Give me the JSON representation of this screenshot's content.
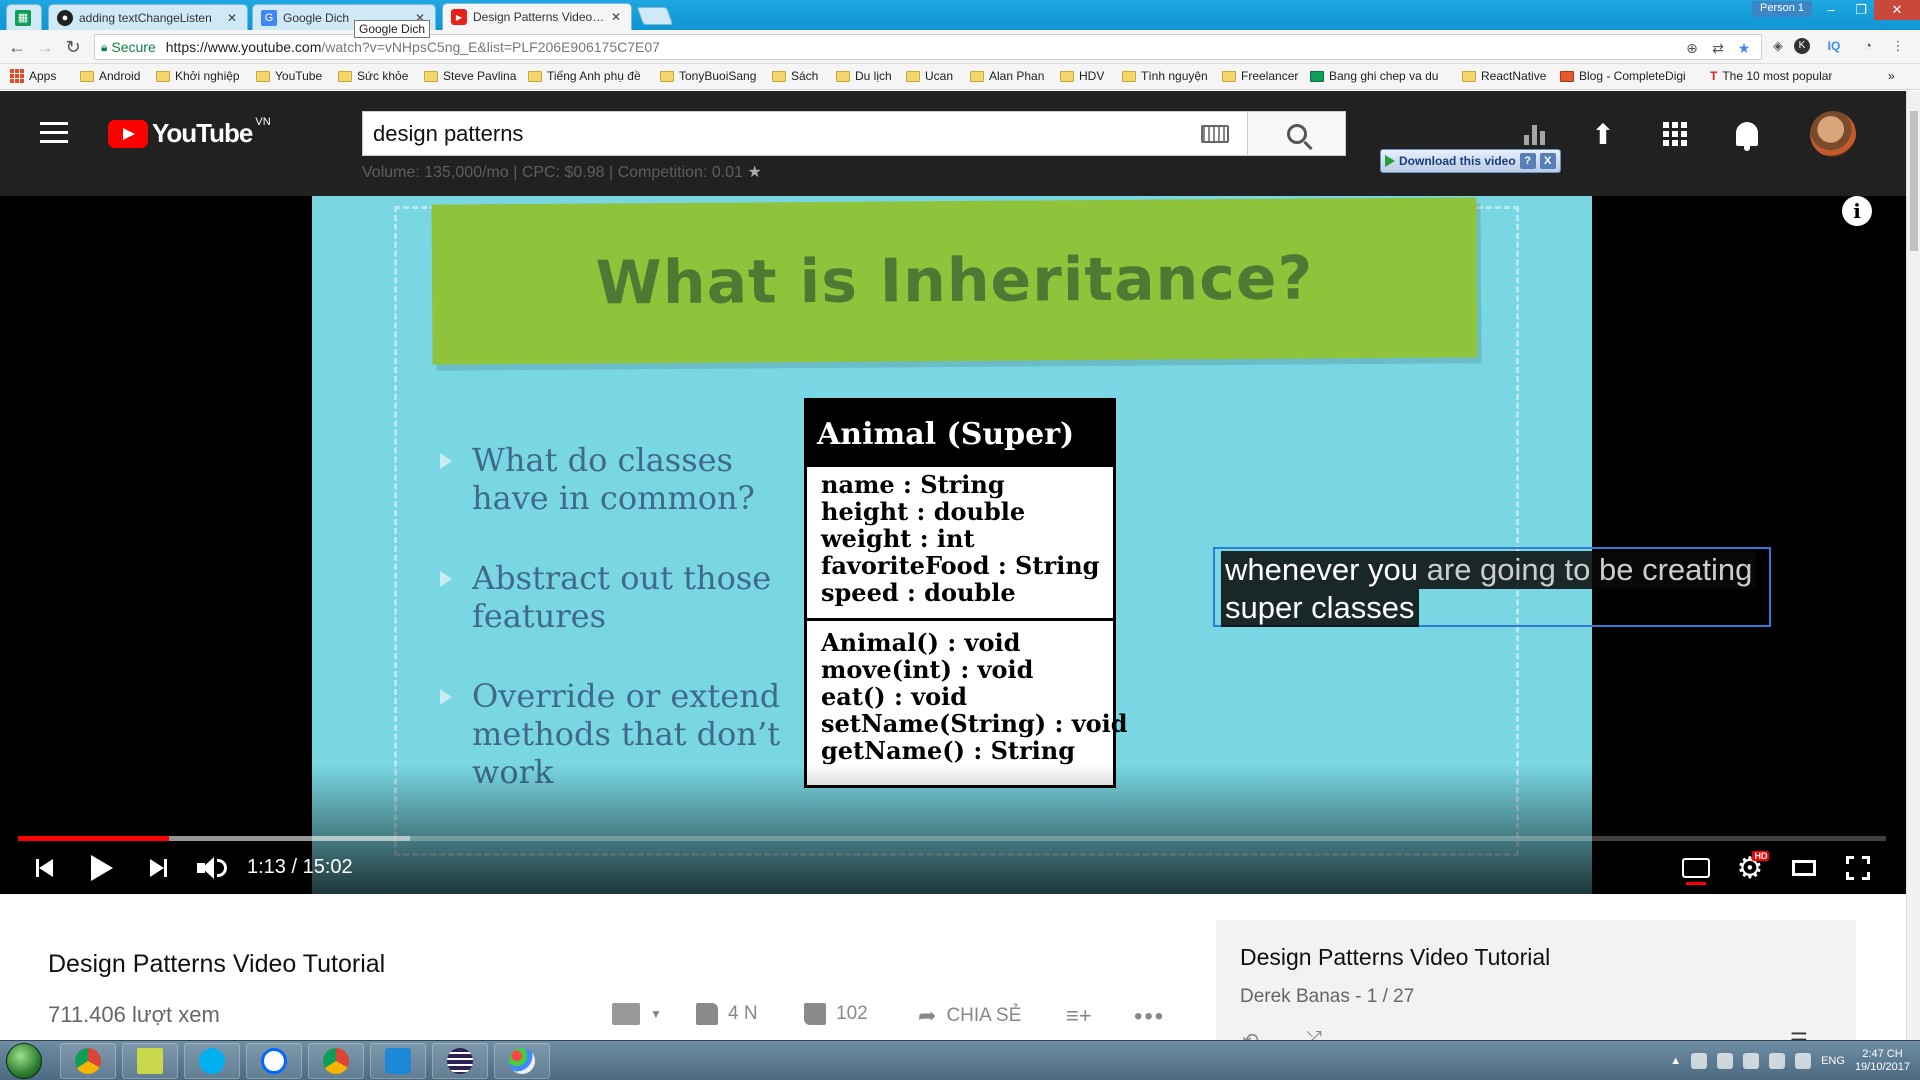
{
  "browser": {
    "tabs": [
      {
        "title": "",
        "icon": "sheets-icon",
        "active": false
      },
      {
        "title": "adding textChangeListen",
        "icon": "github-icon",
        "active": false
      },
      {
        "title": "Google Dich",
        "icon": "google-translate-icon",
        "active": false
      },
      {
        "title": "Design Patterns Video Tu",
        "icon": "youtube-icon",
        "active": true
      }
    ],
    "tooltip": "Google Dich",
    "profile": "Person 1",
    "window_controls": {
      "minimize": "–",
      "maximize": "❐",
      "close": "✕"
    },
    "secure_label": "Secure",
    "url_host": "https://www.youtube.com",
    "url_path": "/watch?v=vNHpsC5ng_E&list=PLF206E906175C7E07",
    "bookmarks": [
      {
        "label": "Apps",
        "icon": "apps-icon"
      },
      {
        "label": "Android",
        "icon": "folder-icon"
      },
      {
        "label": "Khởi nghiệp",
        "icon": "folder-icon"
      },
      {
        "label": "YouTube",
        "icon": "folder-icon"
      },
      {
        "label": "Sức khỏe",
        "icon": "folder-icon"
      },
      {
        "label": "Steve Pavlina",
        "icon": "folder-icon"
      },
      {
        "label": "Tiếng Anh phụ đề",
        "icon": "folder-icon"
      },
      {
        "label": "TonyBuoiSang",
        "icon": "folder-icon"
      },
      {
        "label": "Sách",
        "icon": "folder-icon"
      },
      {
        "label": "Du lịch",
        "icon": "folder-icon"
      },
      {
        "label": "Ucan",
        "icon": "folder-icon"
      },
      {
        "label": "Alan Phan",
        "icon": "folder-icon"
      },
      {
        "label": "HDV",
        "icon": "folder-icon"
      },
      {
        "label": "Tình nguyện",
        "icon": "folder-icon"
      },
      {
        "label": "Freelancer",
        "icon": "folder-icon"
      },
      {
        "label": "Bang ghi chep va du",
        "icon": "sheets-icon"
      },
      {
        "label": "ReactNative",
        "icon": "folder-icon"
      },
      {
        "label": "Blog - CompleteDigi",
        "icon": "blog-icon"
      },
      {
        "label": "The 10 most popular",
        "icon": "t-icon"
      }
    ],
    "more_bookmarks": "»"
  },
  "youtube": {
    "country": "VN",
    "logo_text": "YouTube",
    "search_query": "design patterns",
    "seo_info": "Volume: 135,000/mo | CPC: $0.98 | Competition: 0.01",
    "download_label": "Download this video",
    "download_help": "?",
    "download_close": "X"
  },
  "slide": {
    "title": "What is Inheritance?",
    "bullets": [
      "What do classes have in common?",
      "Abstract out those features",
      "Override or extend methods that don’t work"
    ],
    "uml": {
      "class_name": "Animal (Super)",
      "attributes": [
        "name : String",
        "height : double",
        "weight : int",
        "favoriteFood : String",
        "speed : double"
      ],
      "operations": [
        "Animal() : void",
        "move(int) : void",
        "eat() : void",
        "setName(String) : void",
        "getName() : String"
      ]
    }
  },
  "captions": {
    "line1_bright": "whenever you",
    "line1_dim": " are going to be creating",
    "line2": "super classes"
  },
  "player": {
    "time_current": "1:13",
    "time_total": "15:02",
    "progress_played_fraction": 0.081,
    "progress_buffered_fraction": 0.21,
    "hd_badge": "HD",
    "info_glyph": "i"
  },
  "video": {
    "title": "Design Patterns Video Tutorial",
    "views": "711.406 lượt xem",
    "likes": "4 N",
    "dislikes": "102",
    "share_label": "CHIA SẺ"
  },
  "playlist": {
    "title": "Design Patterns Video Tutorial",
    "subtitle": "Derek Banas - 1 / 27"
  },
  "taskbar": {
    "language": "ENG",
    "time": "2:47 CH",
    "date": "19/10/2017"
  }
}
